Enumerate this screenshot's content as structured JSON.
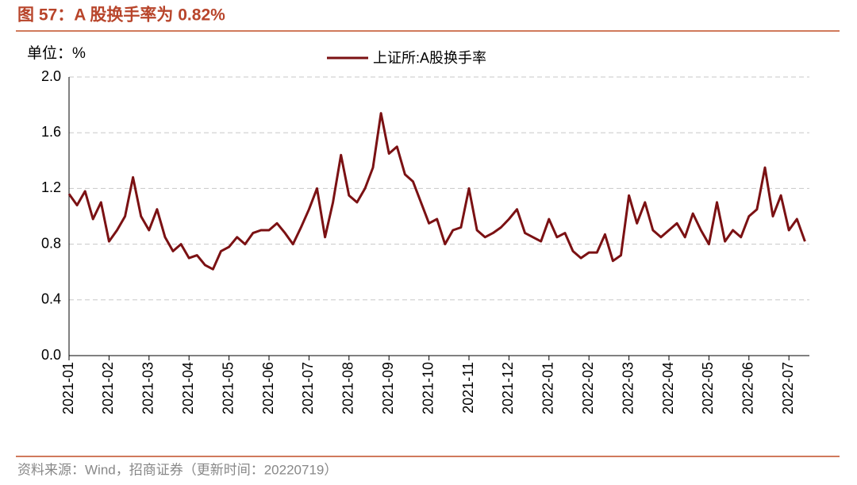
{
  "chart_data": {
    "type": "line",
    "title": "图 57：A 股换手率为 0.82%",
    "unit_label": "单位：%",
    "source": "资料来源：Wind，招商证券（更新时间：20220719）",
    "categories": [
      "2021-01",
      null,
      null,
      null,
      null,
      "2021-02",
      null,
      null,
      null,
      null,
      "2021-03",
      null,
      null,
      null,
      null,
      "2021-04",
      null,
      null,
      null,
      null,
      "2021-05",
      null,
      null,
      null,
      null,
      "2021-06",
      null,
      null,
      null,
      null,
      "2021-07",
      null,
      null,
      null,
      null,
      "2021-08",
      null,
      null,
      null,
      null,
      "2021-09",
      null,
      null,
      null,
      null,
      "2021-10",
      null,
      null,
      null,
      null,
      "2021-11",
      null,
      null,
      null,
      null,
      "2021-12",
      null,
      null,
      null,
      null,
      "2022-01",
      null,
      null,
      null,
      null,
      "2022-02",
      null,
      null,
      null,
      null,
      "2022-03",
      null,
      null,
      null,
      null,
      "2022-04",
      null,
      null,
      null,
      null,
      "2022-05",
      null,
      null,
      null,
      null,
      "2022-06",
      null,
      null,
      null,
      null,
      "2022-07",
      null,
      null
    ],
    "series": [
      {
        "name": "上证所:A股换手率",
        "color": "#7b1113",
        "values": [
          1.16,
          1.08,
          1.18,
          0.98,
          1.1,
          0.82,
          0.9,
          1.0,
          1.28,
          1.0,
          0.9,
          1.05,
          0.85,
          0.75,
          0.8,
          0.7,
          0.72,
          0.65,
          0.62,
          0.75,
          0.78,
          0.85,
          0.8,
          0.88,
          0.9,
          0.9,
          0.95,
          0.88,
          0.8,
          0.92,
          1.05,
          1.2,
          0.85,
          1.1,
          1.44,
          1.15,
          1.1,
          1.2,
          1.35,
          1.74,
          1.45,
          1.5,
          1.3,
          1.25,
          1.1,
          0.95,
          0.98,
          0.8,
          0.9,
          0.92,
          1.2,
          0.9,
          0.85,
          0.88,
          0.92,
          0.98,
          1.05,
          0.88,
          0.85,
          0.82,
          0.98,
          0.85,
          0.88,
          0.75,
          0.7,
          0.74,
          0.74,
          0.87,
          0.68,
          0.72,
          1.15,
          0.95,
          1.1,
          0.9,
          0.85,
          0.9,
          0.95,
          0.85,
          1.02,
          0.9,
          0.8,
          1.1,
          0.82,
          0.9,
          0.85,
          1.0,
          1.05,
          1.35,
          1.0,
          1.15,
          0.9,
          0.98,
          0.82
        ]
      }
    ],
    "ylim": [
      0,
      2.0
    ],
    "yticks": [
      {
        "value": 0,
        "label": "0.0"
      },
      0.4,
      0.8,
      1.2,
      1.6,
      {
        "value": 2,
        "label": "2.0"
      }
    ],
    "grid": true,
    "legend": "top"
  }
}
